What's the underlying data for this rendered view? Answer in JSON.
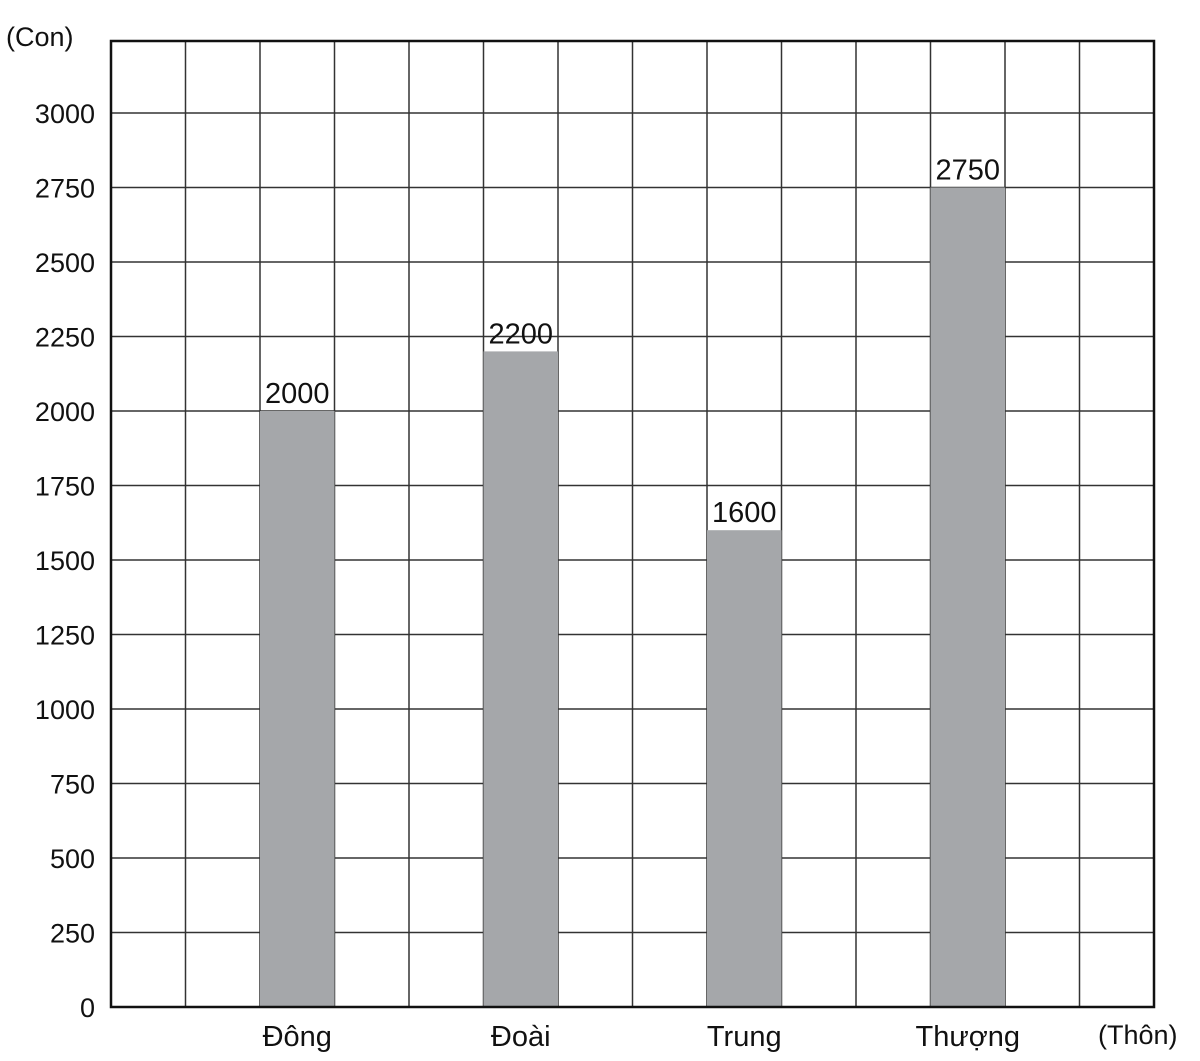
{
  "chart_data": {
    "type": "bar",
    "categories": [
      "Đông",
      "Đoài",
      "Trung",
      "Thượng"
    ],
    "values": [
      2000,
      2200,
      1600,
      2750
    ],
    "data_labels": [
      "2000",
      "2200",
      "1600",
      "2750"
    ],
    "ylabel": "(Con)",
    "xlabel": "(Thôn)",
    "ylim": [
      0,
      3000
    ],
    "y_ticks": [
      "0",
      "250",
      "500",
      "750",
      "1000",
      "1250",
      "1500",
      "1750",
      "2000",
      "2250",
      "2500",
      "2750",
      "3000"
    ],
    "grid": true,
    "colors": {
      "bar": "#a5a7aa",
      "grid": "#333333",
      "text": "#111111"
    }
  }
}
